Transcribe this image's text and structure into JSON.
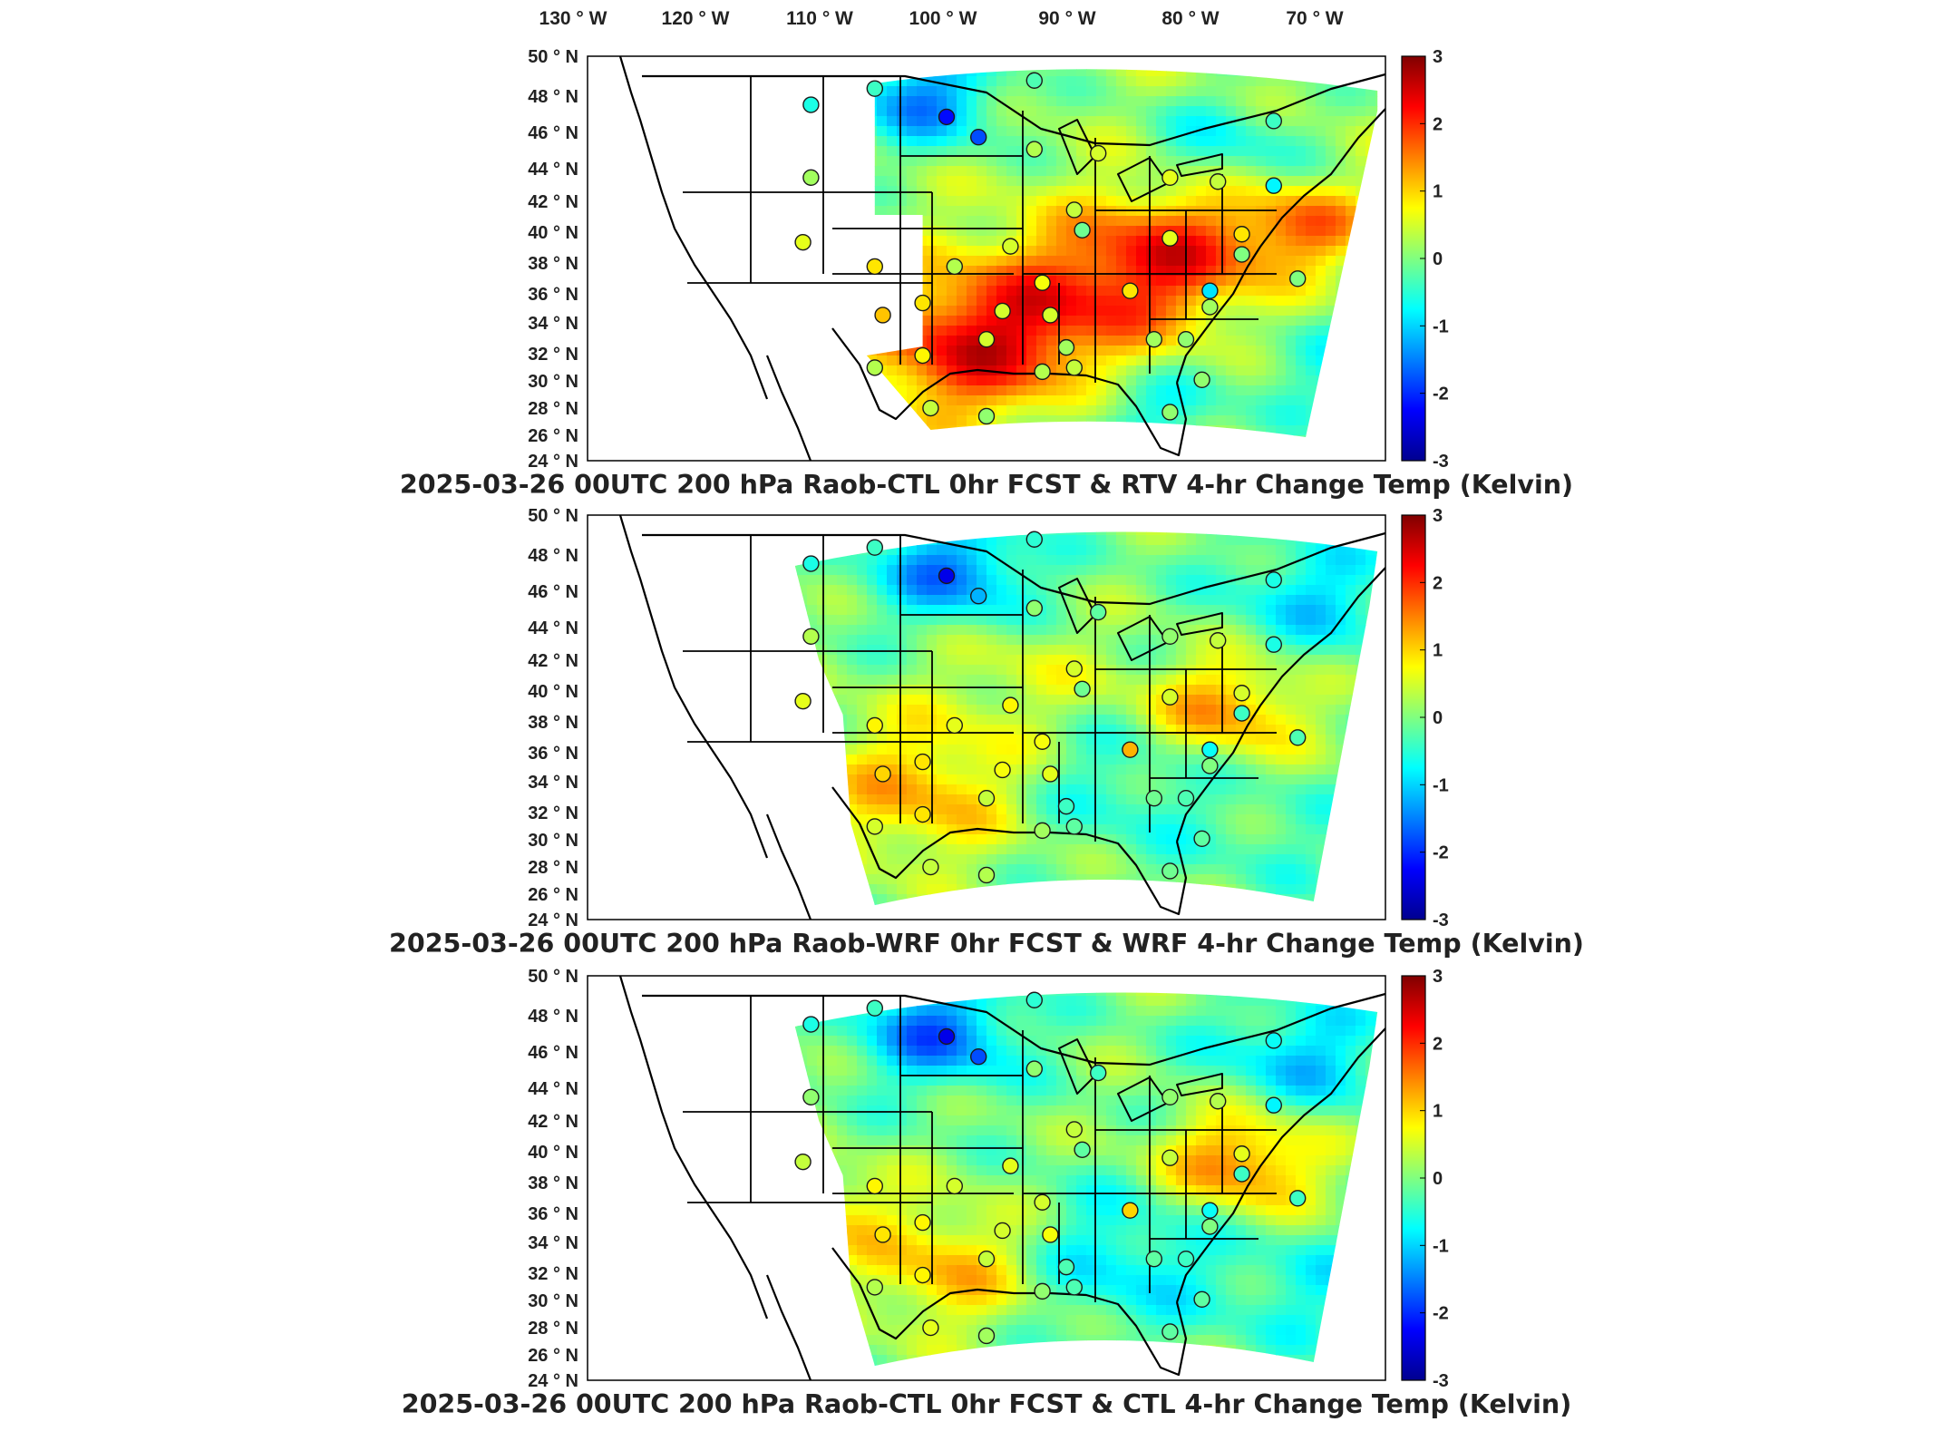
{
  "colors": {
    "scale": [
      "#00008f",
      "#0000ff",
      "#0080ff",
      "#00ffff",
      "#80ff80",
      "#ffff00",
      "#ff8000",
      "#ff0000",
      "#800000"
    ],
    "land_line": "#000000",
    "frame": "#000000"
  },
  "lon_labels": [
    "130",
    "120",
    "110",
    "100",
    "90",
    "80",
    "70"
  ],
  "lon_suffix": "W",
  "lat_labels": [
    "50",
    "48",
    "46",
    "44",
    "42",
    "40",
    "38",
    "36",
    "34",
    "32",
    "30",
    "28",
    "26",
    "24"
  ],
  "lat_suffix": "N",
  "degree_mark": "°",
  "colorbar_ticks": [
    "3",
    "2",
    "1",
    "0",
    "-1",
    "-2",
    "-3"
  ],
  "panels": [
    {
      "title": "2025-03-26 00UTC 200 hPa Raob-CTL 0hr FCST & RTV 4-hr Change Temp (Kelvin)"
    },
    {
      "title": "2025-03-26 00UTC 200 hPa Raob-WRF 0hr FCST & WRF 4-hr Change Temp (Kelvin)"
    },
    {
      "title": "2025-03-26 00UTC 200 hPa Raob-CTL 0hr FCST & CTL 4-hr Change Temp (Kelvin)"
    }
  ]
}
